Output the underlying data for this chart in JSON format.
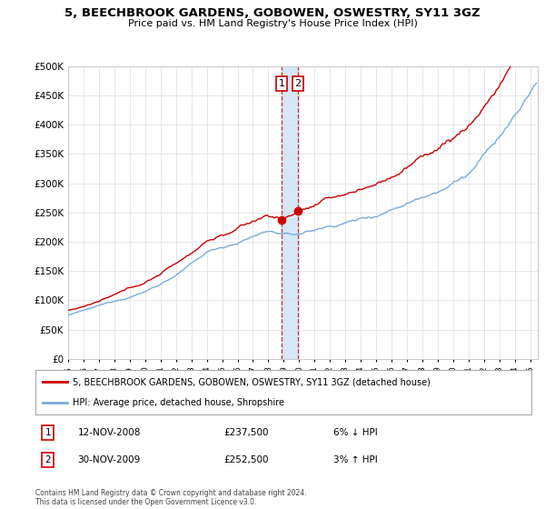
{
  "title": "5, BEECHBROOK GARDENS, GOBOWEN, OSWESTRY, SY11 3GZ",
  "subtitle": "Price paid vs. HM Land Registry's House Price Index (HPI)",
  "ylim": [
    0,
    500000
  ],
  "yticks": [
    0,
    50000,
    100000,
    150000,
    200000,
    250000,
    300000,
    350000,
    400000,
    450000,
    500000
  ],
  "xlim_start": 1995.0,
  "xlim_end": 2025.5,
  "property_color": "#cc0000",
  "hpi_color": "#7aabdb",
  "vline_color": "#cc0000",
  "shade_color": "#d6e8f7",
  "transactions": [
    {
      "date": 2008.87,
      "price": 237500,
      "label": "1"
    },
    {
      "date": 2009.92,
      "price": 252500,
      "label": "2"
    }
  ],
  "legend_property": "5, BEECHBROOK GARDENS, GOBOWEN, OSWESTRY, SY11 3GZ (detached house)",
  "legend_hpi": "HPI: Average price, detached house, Shropshire",
  "table_rows": [
    {
      "num": "1",
      "date": "12-NOV-2008",
      "price": "£237,500",
      "change": "6% ↓ HPI"
    },
    {
      "num": "2",
      "date": "30-NOV-2009",
      "price": "£252,500",
      "change": "3% ↑ HPI"
    }
  ],
  "footnote": "Contains HM Land Registry data © Crown copyright and database right 2024.\nThis data is licensed under the Open Government Licence v3.0.",
  "background_color": "#ffffff",
  "grid_color": "#dddddd"
}
